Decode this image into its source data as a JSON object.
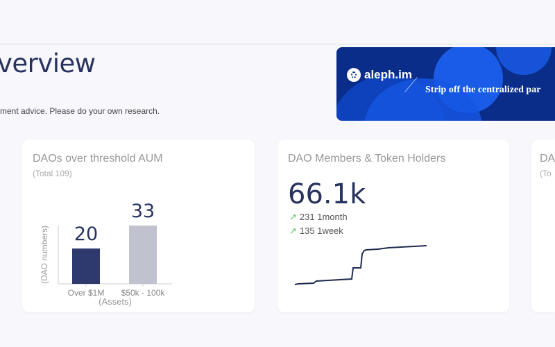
{
  "page": {
    "title": "verview",
    "disclaimer": "ment advice. Please do your own research."
  },
  "banner": {
    "brand": "aleph.im",
    "tagline": "Strip off the centralized par"
  },
  "cards": [
    {
      "title": "DAOs over threshold AUM",
      "subtitle": "(Total 109)"
    },
    {
      "title": "DAO Members & Token Holders",
      "value": "66.1k",
      "deltas": [
        {
          "icon": "arrow-up-right-icon",
          "text": "231 1month"
        },
        {
          "icon": "arrow-up-right-icon",
          "text": "135 1week"
        }
      ],
      "line_color": "#1f2a4f"
    },
    {
      "title": "DA",
      "subtitle": "(To"
    }
  ],
  "chart_data": {
    "type": "bar",
    "categories": [
      "Over $1M",
      "$50k - 100k"
    ],
    "values": [
      20,
      33
    ],
    "value_labels": [
      "20",
      "33"
    ],
    "xlabel": "(Assets)",
    "ylabel": "(DAO numbers)",
    "colors": [
      "#2e3a6e",
      "#c0c3cf"
    ]
  }
}
